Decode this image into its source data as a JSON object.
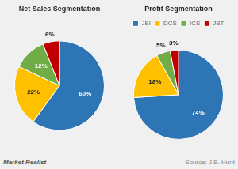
{
  "chart_data": [
    {
      "type": "pie",
      "title": "Net Sales Segmentation",
      "categories": [
        "JBI",
        "DCS",
        "ICS",
        "JBT"
      ],
      "values": [
        60,
        22,
        12,
        6
      ],
      "value_labels": [
        "60%",
        "22%",
        "12%",
        "6%"
      ],
      "colors": [
        "#2e75b6",
        "#ffc000",
        "#70ad47",
        "#c00000"
      ],
      "data_labels": true,
      "legend": false,
      "annotations": [
        "Market Realist"
      ]
    },
    {
      "type": "pie",
      "title": "Profit Segmentation",
      "categories": [
        "JBI",
        "DCS",
        "ICS",
        "JBT"
      ],
      "values": [
        74,
        18,
        5,
        3
      ],
      "value_labels": [
        "74%",
        "18%",
        "5%",
        "3%"
      ],
      "colors": [
        "#2e75b6",
        "#ffc000",
        "#70ad47",
        "#c00000"
      ],
      "data_labels": true,
      "legend": "top",
      "annotations": [
        "Source: J.B. Hunt"
      ]
    }
  ]
}
